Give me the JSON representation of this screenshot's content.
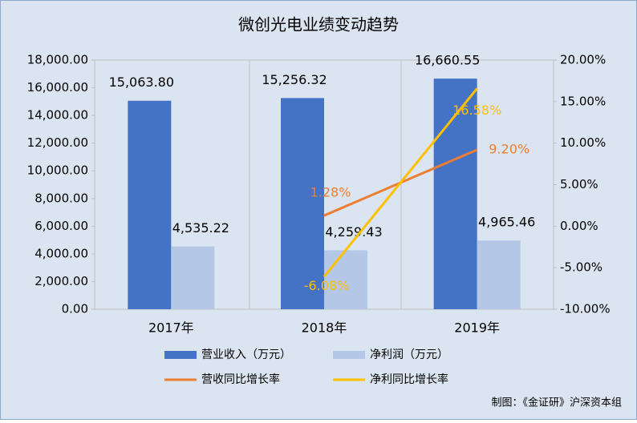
{
  "chart_data": {
    "type": "bar",
    "title": "微创光电业绩变动趋势",
    "categories": [
      "2017年",
      "2018年",
      "2019年"
    ],
    "series": [
      {
        "name": "营业收入（万元）",
        "color": "#4472c4",
        "values": [
          15063.8,
          15256.32,
          16660.55
        ],
        "value_labels": [
          "15,063.80",
          "15,256.32",
          "16,660.55"
        ]
      },
      {
        "name": "净利润（万元）",
        "color": "#b4c7e7",
        "values": [
          4535.22,
          4259.43,
          4965.46
        ],
        "value_labels": [
          "4,535.22",
          "4,259.43",
          "4,965.46"
        ]
      },
      {
        "name": "营收同比增长率",
        "type": "line",
        "axis": "y2",
        "color": "#ed7d31",
        "values": [
          null,
          1.28,
          9.2
        ],
        "value_labels": [
          null,
          "1.28%",
          "9.20%"
        ]
      },
      {
        "name": "净利同比增长率",
        "type": "line",
        "axis": "y2",
        "color": "#ffc000",
        "values": [
          null,
          -6.08,
          16.58
        ],
        "value_labels": [
          null,
          "-6.08%",
          "16.58%"
        ]
      }
    ],
    "ylim": [
      0,
      18000
    ],
    "yticks": [
      {
        "value": 0,
        "label": "0.00"
      },
      {
        "value": 2000,
        "label": "2,000.00"
      },
      {
        "value": 4000,
        "label": "4,000.00"
      },
      {
        "value": 6000,
        "label": "6,000.00"
      },
      {
        "value": 8000,
        "label": "8,000.00"
      },
      {
        "value": 10000,
        "label": "10,000.00"
      },
      {
        "value": 12000,
        "label": "12,000.00"
      },
      {
        "value": 14000,
        "label": "14,000.00"
      },
      {
        "value": 16000,
        "label": "16,000.00"
      },
      {
        "value": 18000,
        "label": "18,000.00"
      }
    ],
    "y2lim": [
      -10,
      20
    ],
    "y2ticks": [
      {
        "value": -10,
        "label": "-10.00%"
      },
      {
        "value": -5,
        "label": "-5.00%"
      },
      {
        "value": 0,
        "label": "0.00%"
      },
      {
        "value": 5,
        "label": "5.00%"
      },
      {
        "value": 10,
        "label": "10.00%"
      },
      {
        "value": 15,
        "label": "15.00%"
      },
      {
        "value": 20,
        "label": "20.00%"
      }
    ],
    "source": "制图：《金证研》沪深资本组"
  }
}
